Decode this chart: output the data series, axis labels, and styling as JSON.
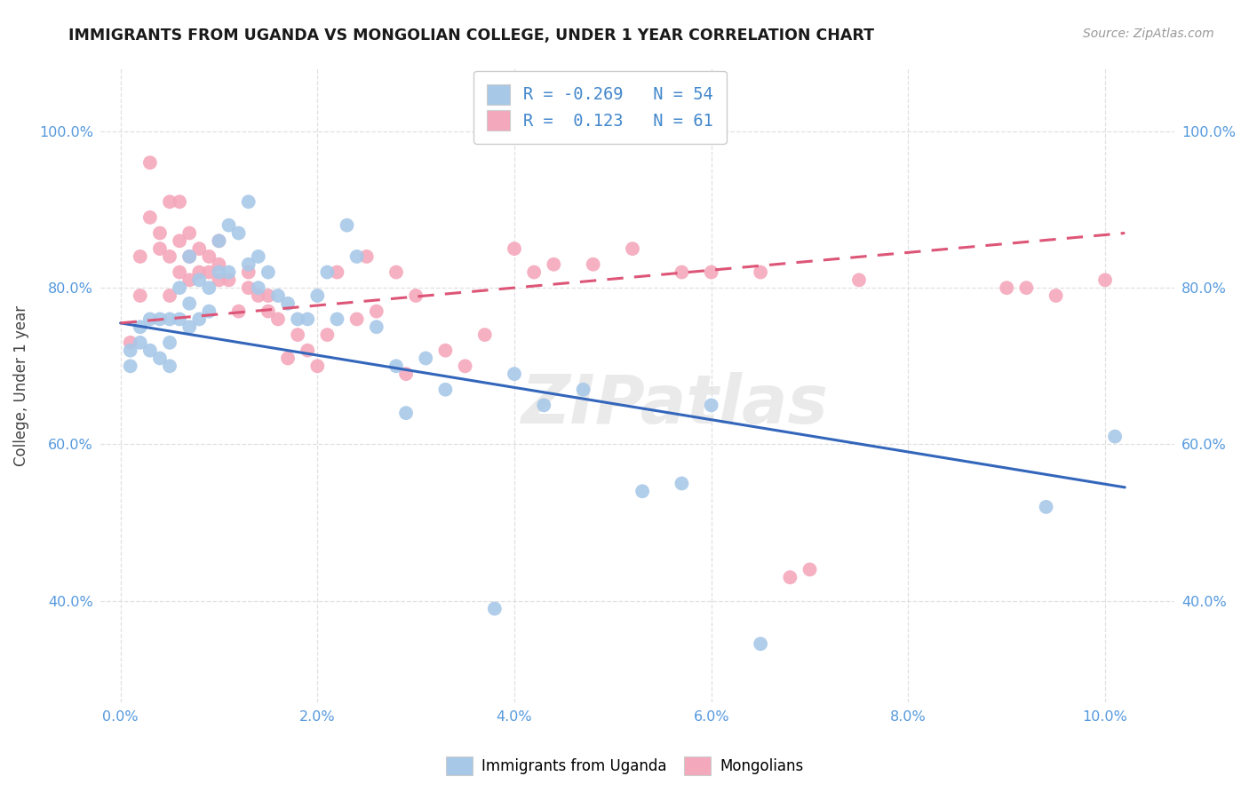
{
  "title": "IMMIGRANTS FROM UGANDA VS MONGOLIAN COLLEGE, UNDER 1 YEAR CORRELATION CHART",
  "source": "Source: ZipAtlas.com",
  "ylabel": "College, Under 1 year",
  "x_tick_labels": [
    "0.0%",
    "2.0%",
    "4.0%",
    "6.0%",
    "8.0%",
    "10.0%"
  ],
  "x_tick_values": [
    0.0,
    0.02,
    0.04,
    0.06,
    0.08,
    0.1
  ],
  "y_tick_labels": [
    "40.0%",
    "60.0%",
    "80.0%",
    "100.0%"
  ],
  "y_tick_values": [
    0.4,
    0.6,
    0.8,
    1.0
  ],
  "xlim": [
    -0.002,
    0.107
  ],
  "ylim": [
    0.27,
    1.08
  ],
  "legend_r_blue": "-0.269",
  "legend_n_blue": "54",
  "legend_r_pink": " 0.123",
  "legend_n_pink": "61",
  "blue_color": "#a8c8e8",
  "pink_color": "#f4a8bc",
  "blue_line_color": "#3366bb",
  "pink_line_color": "#dd5577",
  "watermark": "ZIPatlas",
  "blue_line_x": [
    0.0,
    0.102
  ],
  "blue_line_y": [
    0.755,
    0.545
  ],
  "pink_line_x": [
    0.0,
    0.102
  ],
  "pink_line_y": [
    0.755,
    0.87
  ],
  "blue_scatter_x": [
    0.001,
    0.001,
    0.002,
    0.002,
    0.003,
    0.003,
    0.004,
    0.004,
    0.005,
    0.005,
    0.005,
    0.006,
    0.006,
    0.007,
    0.007,
    0.007,
    0.008,
    0.008,
    0.009,
    0.009,
    0.01,
    0.01,
    0.011,
    0.011,
    0.012,
    0.013,
    0.013,
    0.014,
    0.014,
    0.015,
    0.016,
    0.017,
    0.018,
    0.019,
    0.02,
    0.021,
    0.022,
    0.023,
    0.024,
    0.026,
    0.028,
    0.029,
    0.031,
    0.033,
    0.038,
    0.04,
    0.043,
    0.047,
    0.053,
    0.057,
    0.06,
    0.065,
    0.094,
    0.101
  ],
  "blue_scatter_y": [
    0.72,
    0.7,
    0.75,
    0.73,
    0.76,
    0.72,
    0.76,
    0.71,
    0.76,
    0.73,
    0.7,
    0.8,
    0.76,
    0.84,
    0.78,
    0.75,
    0.81,
    0.76,
    0.8,
    0.77,
    0.86,
    0.82,
    0.88,
    0.82,
    0.87,
    0.91,
    0.83,
    0.84,
    0.8,
    0.82,
    0.79,
    0.78,
    0.76,
    0.76,
    0.79,
    0.82,
    0.76,
    0.88,
    0.84,
    0.75,
    0.7,
    0.64,
    0.71,
    0.67,
    0.39,
    0.69,
    0.65,
    0.67,
    0.54,
    0.55,
    0.65,
    0.345,
    0.52,
    0.61
  ],
  "pink_scatter_x": [
    0.001,
    0.002,
    0.002,
    0.003,
    0.003,
    0.004,
    0.004,
    0.005,
    0.005,
    0.005,
    0.006,
    0.006,
    0.006,
    0.007,
    0.007,
    0.007,
    0.008,
    0.008,
    0.009,
    0.009,
    0.01,
    0.01,
    0.01,
    0.011,
    0.012,
    0.013,
    0.013,
    0.014,
    0.015,
    0.015,
    0.016,
    0.017,
    0.018,
    0.019,
    0.02,
    0.021,
    0.022,
    0.024,
    0.025,
    0.026,
    0.028,
    0.029,
    0.03,
    0.033,
    0.035,
    0.037,
    0.04,
    0.042,
    0.044,
    0.048,
    0.052,
    0.057,
    0.06,
    0.065,
    0.068,
    0.07,
    0.075,
    0.09,
    0.092,
    0.095,
    0.1
  ],
  "pink_scatter_y": [
    0.73,
    0.79,
    0.84,
    0.89,
    0.96,
    0.87,
    0.85,
    0.91,
    0.84,
    0.79,
    0.91,
    0.86,
    0.82,
    0.87,
    0.84,
    0.81,
    0.85,
    0.82,
    0.84,
    0.82,
    0.86,
    0.83,
    0.81,
    0.81,
    0.77,
    0.82,
    0.8,
    0.79,
    0.79,
    0.77,
    0.76,
    0.71,
    0.74,
    0.72,
    0.7,
    0.74,
    0.82,
    0.76,
    0.84,
    0.77,
    0.82,
    0.69,
    0.79,
    0.72,
    0.7,
    0.74,
    0.85,
    0.82,
    0.83,
    0.83,
    0.85,
    0.82,
    0.82,
    0.82,
    0.43,
    0.44,
    0.81,
    0.8,
    0.8,
    0.79,
    0.81
  ],
  "grid_color": "#e0e0e0",
  "background_color": "#ffffff"
}
